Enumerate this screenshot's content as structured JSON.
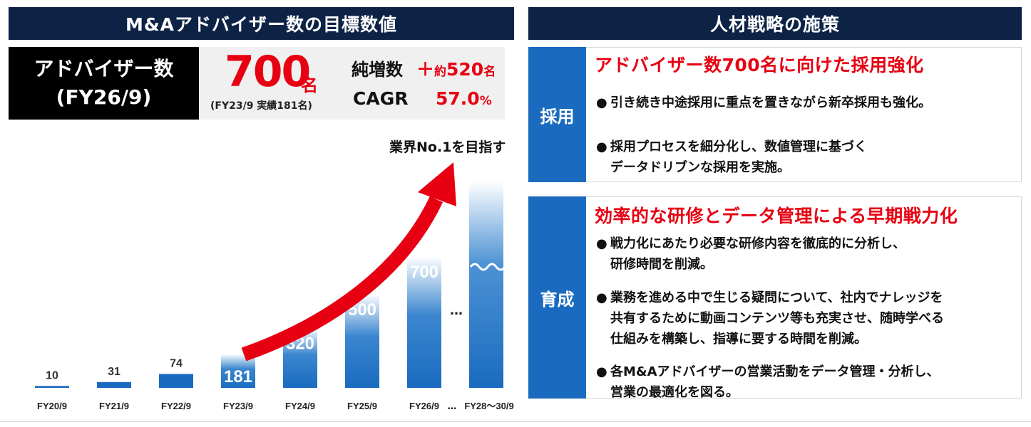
{
  "left_header": "M&Aアドバイザー数の目標数値",
  "right_header": "人材戦略の施策",
  "kpi": {
    "label_line1": "アドバイザー数",
    "label_line2": "(FY26/9)",
    "target_value": "700",
    "target_unit": "名",
    "note": "(FY23/9 実績181名)",
    "increase_label": "純増数",
    "increase_prefix": "＋",
    "increase_approx": "約",
    "increase_value": "520",
    "increase_unit": "名",
    "cagr_label": "CAGR",
    "cagr_value": "57.0",
    "cagr_unit": "%"
  },
  "target_label": "業界No.1を目指す",
  "chart_data": {
    "type": "bar",
    "categories": [
      "FY20/9",
      "FY21/9",
      "FY22/9",
      "FY23/9",
      "FY24/9",
      "FY25/9",
      "FY26/9",
      "FY28～30/9"
    ],
    "values": [
      10,
      31,
      74,
      181,
      320,
      500,
      700,
      null
    ],
    "value_labels": [
      "10",
      "31",
      "74",
      "181",
      "320",
      "500",
      "700",
      ""
    ],
    "gap_markers": [
      "…",
      "…"
    ],
    "ylim": [
      0,
      1000
    ],
    "colors": {
      "bar": "#1a6bbf",
      "arrow": "#e60012"
    }
  },
  "recruit": {
    "tag": "採用",
    "title": "アドバイザー数700名に向けた採用強化",
    "bullets": [
      "引き続き中途採用に重点を置きながら新卒採用も強化。",
      "採用プロセスを細分化し、数値管理に基づく\nデータドリブンな採用を実施。"
    ]
  },
  "training": {
    "tag": "育成",
    "title": "効率的な研修とデータ管理による早期戦力化",
    "bullets": [
      "戦力化にあたり必要な研修内容を徹底的に分析し、\n研修時間を削減。",
      "業務を進める中で生じる疑問について、社内でナレッジを\n共有するために動画コンテンツ等も充実させ、随時学べる\n仕組みを構築し、指導に要する時間を削減。",
      "各M&Aアドバイザーの営業活動をデータ管理・分析し、\n営業の最適化を図る。"
    ]
  },
  "bullet_glyph": "●"
}
